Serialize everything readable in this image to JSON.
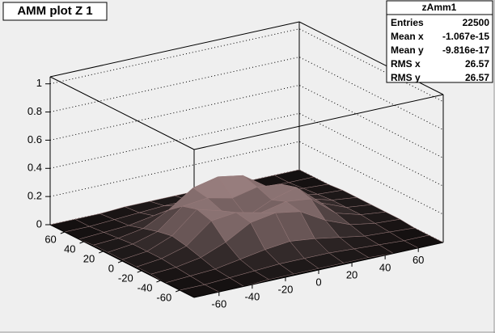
{
  "chart_data": {
    "type": "surface",
    "title": "AMM plot Z 1",
    "x": [
      -75,
      -60,
      -45,
      -30,
      -15,
      0,
      15,
      30,
      45,
      60,
      75
    ],
    "y": [
      -75,
      -60,
      -45,
      -30,
      -15,
      0,
      15,
      30,
      45,
      60,
      75
    ],
    "z": [
      [
        0,
        0,
        0,
        0.01,
        0.01,
        0.01,
        0.01,
        0.01,
        0,
        0,
        0
      ],
      [
        0,
        0,
        0.01,
        0.02,
        0.03,
        0.03,
        0.03,
        0.02,
        0.01,
        0,
        0
      ],
      [
        0,
        0.01,
        0.02,
        0.05,
        0.08,
        0.1,
        0.08,
        0.05,
        0.02,
        0.01,
        0
      ],
      [
        0.01,
        0.02,
        0.05,
        0.12,
        0.22,
        0.25,
        0.22,
        0.12,
        0.05,
        0.02,
        0.01
      ],
      [
        0.01,
        0.03,
        0.08,
        0.22,
        0.24,
        0.2,
        0.24,
        0.22,
        0.08,
        0.03,
        0.01
      ],
      [
        0.01,
        0.03,
        0.1,
        0.25,
        0.2,
        0.12,
        0.2,
        0.25,
        0.1,
        0.03,
        0.01
      ],
      [
        0.01,
        0.03,
        0.08,
        0.22,
        0.24,
        0.2,
        0.24,
        0.22,
        0.08,
        0.03,
        0.01
      ],
      [
        0.01,
        0.02,
        0.05,
        0.14,
        0.26,
        0.3,
        0.27,
        0.15,
        0.05,
        0.02,
        0.01
      ],
      [
        0,
        0.01,
        0.02,
        0.05,
        0.08,
        0.1,
        0.08,
        0.05,
        0.02,
        0.01,
        0
      ],
      [
        0,
        0,
        0.01,
        0.02,
        0.03,
        0.03,
        0.03,
        0.02,
        0.01,
        0,
        0
      ],
      [
        0,
        0,
        0,
        0.01,
        0.01,
        0.01,
        0.01,
        0.01,
        0,
        0,
        0
      ]
    ],
    "xlim": [
      -75,
      75
    ],
    "ylim": [
      -75,
      75
    ],
    "zlim": [
      0,
      1.05
    ],
    "xticks": [
      -60,
      -40,
      -20,
      0,
      20,
      40,
      60
    ],
    "yticks": [
      -60,
      -40,
      -20,
      0,
      20,
      40,
      60
    ],
    "zticks": [
      0,
      0.2,
      0.4,
      0.6,
      0.8,
      1
    ],
    "grid": true,
    "low_color": "#141010",
    "high_color": "#b89898",
    "line_color": "#9a7c7c"
  },
  "stats": {
    "name": "zAmm1",
    "rows": [
      [
        "Entries",
        "22500"
      ],
      [
        "Mean x",
        "-1.067e-15"
      ],
      [
        "Mean y",
        "-9.816e-17"
      ],
      [
        "RMS x",
        "26.57"
      ],
      [
        "RMS y",
        "26.57"
      ]
    ]
  }
}
